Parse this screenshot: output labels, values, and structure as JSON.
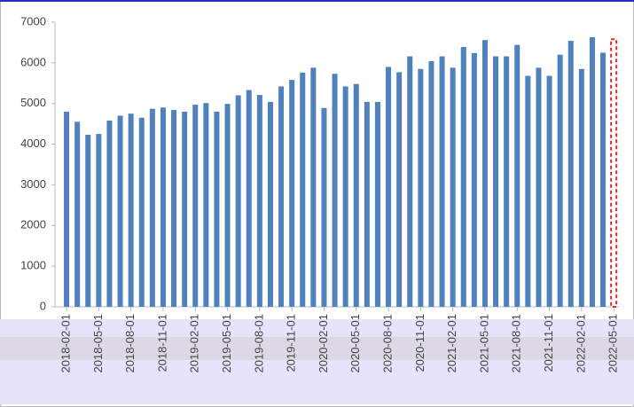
{
  "chart_data": {
    "type": "bar",
    "categories": [
      "2018-02-01",
      null,
      null,
      "2018-05-01",
      null,
      null,
      "2018-08-01",
      null,
      null,
      "2018-11-01",
      null,
      null,
      "2019-02-01",
      null,
      null,
      "2019-05-01",
      null,
      null,
      "2019-08-01",
      null,
      null,
      "2019-11-01",
      null,
      null,
      "2020-02-01",
      null,
      null,
      "2020-05-01",
      null,
      null,
      "2020-08-01",
      null,
      null,
      "2020-11-01",
      null,
      null,
      "2021-02-01",
      null,
      null,
      "2021-05-01",
      null,
      null,
      "2021-08-01",
      null,
      null,
      "2021-11-01",
      null,
      null,
      "2022-02-01",
      null,
      null,
      "2022-05-01"
    ],
    "values": [
      4800,
      4550,
      4230,
      4250,
      4580,
      4700,
      4750,
      4650,
      4870,
      4900,
      4840,
      4800,
      4970,
      5010,
      4800,
      4990,
      5200,
      5330,
      5210,
      5040,
      5420,
      5580,
      5760,
      5880,
      4890,
      5730,
      5420,
      5480,
      5040,
      5040,
      5900,
      5770,
      6160,
      5850,
      6040,
      6160,
      5880,
      6390,
      6240,
      6560,
      6160,
      6160,
      6440,
      5680,
      5880,
      5680,
      6200,
      6540,
      5850,
      6630,
      6250,
      6580
    ],
    "color": "#4f81bd",
    "last_bar_style": "dashed-outline",
    "last_bar_color": "#e02a2a",
    "ylim": [
      0,
      7000
    ],
    "yticks": [
      0,
      1000,
      2000,
      3000,
      4000,
      5000,
      6000,
      7000
    ],
    "grid": false
  }
}
